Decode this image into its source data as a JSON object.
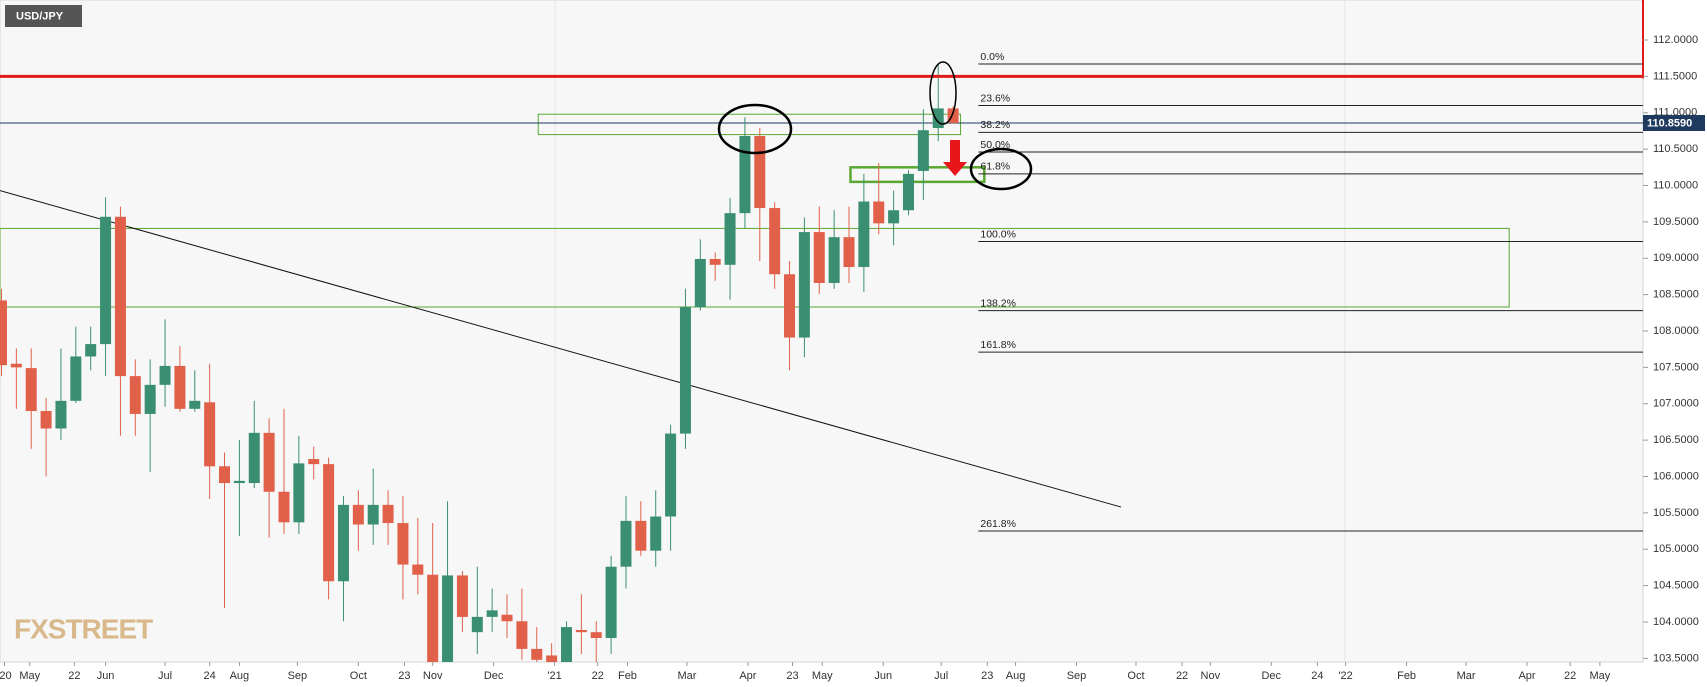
{
  "chart_data": {
    "type": "candlestick",
    "title": "USD/JPY",
    "watermark": "FXSTREET",
    "up_color": "#3a8f72",
    "down_color": "#e0604a",
    "open": [
      108.42,
      107.55,
      107.49,
      106.9,
      106.66,
      107.04,
      107.65,
      107.82,
      109.57,
      107.38,
      106.86,
      107.26,
      107.52,
      106.93,
      107.02,
      106.14,
      105.91,
      105.91,
      106.6,
      105.79,
      105.37,
      106.24,
      106.17,
      104.56,
      105.61,
      105.34,
      105.61,
      105.36,
      104.79,
      104.65,
      103.44,
      104.64,
      103.86,
      104.07,
      104.1,
      104.01,
      103.63,
      103.54,
      103.44,
      103.89,
      103.86,
      103.78,
      104.76,
      105.39,
      104.98,
      105.45,
      106.59,
      108.33,
      108.99,
      108.91,
      109.62,
      110.68,
      109.69,
      108.78,
      107.91,
      109.36,
      108.66,
      109.29,
      108.88,
      109.78,
      109.48,
      109.66,
      110.2,
      110.79,
      111.06
    ],
    "high": [
      108.58,
      107.76,
      107.76,
      107.08,
      107.76,
      108.06,
      108.06,
      109.84,
      109.71,
      107.61,
      107.61,
      108.16,
      107.79,
      107.46,
      107.55,
      106.33,
      106.5,
      107.04,
      106.8,
      106.93,
      106.56,
      106.41,
      106.26,
      105.73,
      105.81,
      106.11,
      105.81,
      105.73,
      105.43,
      105.36,
      105.66,
      104.7,
      104.76,
      104.46,
      104.38,
      104.46,
      103.93,
      103.71,
      104.01,
      104.38,
      104.01,
      104.91,
      105.73,
      105.66,
      105.81,
      106.71,
      108.58,
      109.26,
      109.08,
      109.83,
      110.94,
      110.79,
      109.77,
      108.96,
      109.56,
      109.71,
      109.66,
      109.71,
      110.16,
      110.31,
      109.93,
      110.21,
      111.05,
      111.66,
      111.09
    ],
    "low": [
      107.38,
      106.93,
      106.38,
      106.0,
      106.5,
      107.01,
      107.46,
      107.38,
      106.56,
      106.56,
      106.06,
      106.96,
      106.89,
      106.89,
      105.69,
      104.19,
      105.18,
      105.84,
      105.16,
      105.21,
      105.21,
      105.96,
      104.31,
      104.01,
      104.98,
      105.06,
      105.06,
      104.31,
      104.38,
      103.4,
      103.4,
      103.86,
      103.56,
      103.86,
      103.78,
      103.48,
      103.4,
      103.4,
      103.4,
      103.56,
      103.4,
      103.56,
      104.46,
      104.91,
      104.76,
      104.98,
      106.38,
      108.28,
      108.69,
      108.43,
      109.41,
      108.96,
      108.58,
      107.46,
      107.64,
      108.51,
      108.58,
      108.66,
      108.54,
      109.33,
      109.18,
      109.59,
      109.8,
      110.61,
      110.85
    ],
    "close": [
      107.53,
      107.5,
      106.9,
      106.66,
      107.04,
      107.65,
      107.82,
      109.57,
      107.38,
      106.86,
      107.26,
      107.52,
      106.93,
      107.04,
      106.14,
      105.91,
      105.94,
      106.6,
      105.79,
      105.37,
      106.18,
      106.17,
      104.56,
      105.61,
      105.34,
      105.61,
      105.36,
      104.79,
      104.65,
      103.44,
      104.64,
      104.07,
      104.07,
      104.16,
      104.01,
      103.63,
      103.48,
      103.44,
      103.93,
      103.86,
      103.78,
      104.76,
      105.39,
      104.98,
      105.45,
      106.59,
      108.33,
      108.99,
      108.91,
      109.62,
      110.68,
      109.69,
      108.78,
      107.91,
      109.36,
      108.66,
      109.29,
      108.88,
      109.78,
      109.48,
      109.66,
      110.16,
      110.76,
      111.06,
      110.86
    ],
    "xlim": [
      -0.1,
      110.4
    ],
    "xticks": [
      {
        "value": 0.2,
        "label": "'20"
      },
      {
        "value": 1.9,
        "label": "May"
      },
      {
        "value": 4.9,
        "label": "22"
      },
      {
        "value": 7.0,
        "label": "Jun"
      },
      {
        "value": 11.0,
        "label": "Jul"
      },
      {
        "value": 14.0,
        "label": "24"
      },
      {
        "value": 16.0,
        "label": "Aug"
      },
      {
        "value": 19.9,
        "label": "Sep"
      },
      {
        "value": 24.0,
        "label": "Oct"
      },
      {
        "value": 27.1,
        "label": "23"
      },
      {
        "value": 29.0,
        "label": "Nov"
      },
      {
        "value": 33.1,
        "label": "Dec"
      },
      {
        "value": 37.2,
        "label": "'21"
      },
      {
        "value": 40.1,
        "label": "22"
      },
      {
        "value": 42.1,
        "label": "Feb"
      },
      {
        "value": 46.1,
        "label": "Mar"
      },
      {
        "value": 50.2,
        "label": "Apr"
      },
      {
        "value": 53.2,
        "label": "23"
      },
      {
        "value": 55.2,
        "label": "May"
      },
      {
        "value": 59.3,
        "label": "Jun"
      },
      {
        "value": 63.2,
        "label": "Jul"
      },
      {
        "value": 66.3,
        "label": "23"
      },
      {
        "value": 68.2,
        "label": "Aug"
      },
      {
        "value": 72.3,
        "label": "Sep"
      },
      {
        "value": 76.3,
        "label": "Oct"
      },
      {
        "value": 79.4,
        "label": "22"
      },
      {
        "value": 81.3,
        "label": "Nov"
      },
      {
        "value": 85.4,
        "label": "Dec"
      },
      {
        "value": 88.5,
        "label": "24"
      },
      {
        "value": 90.4,
        "label": "'22"
      },
      {
        "value": 94.5,
        "label": "Feb"
      },
      {
        "value": 98.5,
        "label": "Mar"
      },
      {
        "value": 102.6,
        "label": "Apr"
      },
      {
        "value": 105.5,
        "label": "22"
      },
      {
        "value": 107.5,
        "label": "May"
      }
    ],
    "ylim": [
      103.45,
      112.55
    ],
    "yticks": [
      {
        "value": 103.5,
        "label": "103.5000"
      },
      {
        "value": 104.0,
        "label": "104.0000"
      },
      {
        "value": 104.5,
        "label": "104.5000"
      },
      {
        "value": 105.0,
        "label": "105.0000"
      },
      {
        "value": 105.5,
        "label": "105.5000"
      },
      {
        "value": 106.0,
        "label": "106.0000"
      },
      {
        "value": 106.5,
        "label": "106.5000"
      },
      {
        "value": 107.0,
        "label": "107.0000"
      },
      {
        "value": 107.5,
        "label": "107.5000"
      },
      {
        "value": 108.0,
        "label": "108.0000"
      },
      {
        "value": 108.5,
        "label": "108.5000"
      },
      {
        "value": 109.0,
        "label": "109.0000"
      },
      {
        "value": 109.5,
        "label": "109.5000"
      },
      {
        "value": 110.0,
        "label": "110.0000"
      },
      {
        "value": 110.5,
        "label": "110.5000"
      },
      {
        "value": 111.0,
        "label": "111.0000"
      },
      {
        "value": 111.5,
        "label": "111.5000"
      },
      {
        "value": 112.0,
        "label": "112.0000"
      }
    ],
    "last_price": {
      "value": 110.859,
      "label": "110.8590"
    },
    "resistance": 111.5,
    "fib_levels": [
      {
        "label": "0.0%",
        "value": 111.67
      },
      {
        "label": "23.6%",
        "value": 111.1
      },
      {
        "label": "38.2%",
        "value": 110.73
      },
      {
        "label": "50.0%",
        "value": 110.46
      },
      {
        "label": "61.8%",
        "value": 110.16
      },
      {
        "label": "100.0%",
        "value": 109.23
      },
      {
        "label": "138.2%",
        "value": 108.28
      },
      {
        "label": "161.8%",
        "value": 107.71
      },
      {
        "label": "261.8%",
        "value": 105.25
      }
    ],
    "zones": [
      {
        "x": [
          36.1,
          64.5
        ],
        "y": [
          110.7,
          110.98
        ],
        "width": 1
      },
      {
        "x": [
          -0.1,
          101.4
        ],
        "y": [
          108.33,
          109.41
        ],
        "width": 1
      },
      {
        "x": [
          57.1,
          66.1
        ],
        "y": [
          110.05,
          110.25
        ],
        "width": 2.5
      }
    ],
    "trendline": {
      "x": [
        -0.1,
        75.3
      ],
      "y": [
        109.93,
        105.58
      ]
    }
  }
}
